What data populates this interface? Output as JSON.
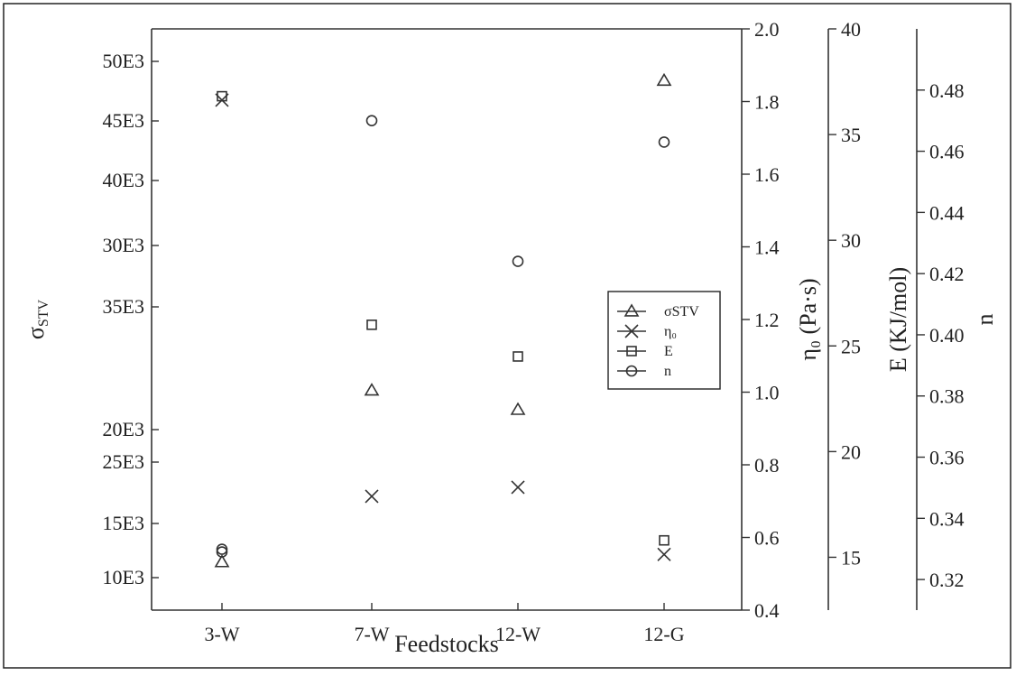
{
  "chart_data": {
    "type": "scatter",
    "xlabel": "Feedstocks",
    "categories": [
      "3-W",
      "7-W",
      "12-W",
      "12-G"
    ],
    "axes": {
      "sigma": {
        "label_main": "σ",
        "label_sub": "STV",
        "ticks": [
          "10E3",
          "15E3",
          "25E3",
          "20E3",
          "35E3",
          "30E3",
          "40E3",
          "45E3",
          "50E3"
        ]
      },
      "eta": {
        "label": "η₀ (Pa·s)",
        "ylim": [
          0.4,
          2.0
        ],
        "ticks": [
          "0.4",
          "0.6",
          "0.8",
          "1.0",
          "1.2",
          "1.4",
          "1.6",
          "1.8",
          "2.0"
        ]
      },
      "E": {
        "label": "E (KJ/mol)",
        "ylim": [
          12.5,
          40
        ],
        "ticks": [
          "15",
          "20",
          "25",
          "30",
          "35",
          "40"
        ]
      },
      "n": {
        "label": "n",
        "ylim": [
          0.31,
          0.5
        ],
        "ticks": [
          "0.32",
          "0.34",
          "0.36",
          "0.38",
          "0.40",
          "0.42",
          "0.44",
          "0.46",
          "0.48"
        ]
      }
    },
    "series": [
      {
        "name": "σSTV",
        "marker": "triangle",
        "axis": "sigma",
        "values": [
          11.2,
          24.5,
          23.0,
          48.5
        ]
      },
      {
        "name": "η₀",
        "marker": "x",
        "axis": "sigma",
        "values": [
          47.0,
          16.3,
          17.0,
          11.8
        ]
      },
      {
        "name": "E",
        "marker": "square",
        "axis": "E",
        "values": [
          null,
          26.0,
          24.5,
          15.8
        ]
      },
      {
        "name": "n",
        "marker": "circle",
        "axis": "n",
        "values": [
          0.329,
          0.47,
          0.424,
          0.463
        ]
      }
    ],
    "extra_points": [
      {
        "marker": "square",
        "axis": "sigma",
        "category": "3-W",
        "value": 47.3
      },
      {
        "marker": "circle",
        "axis": "sigma",
        "category": "3-W",
        "value": 12.2
      }
    ],
    "legend_placement": "center-right",
    "grid": false
  }
}
